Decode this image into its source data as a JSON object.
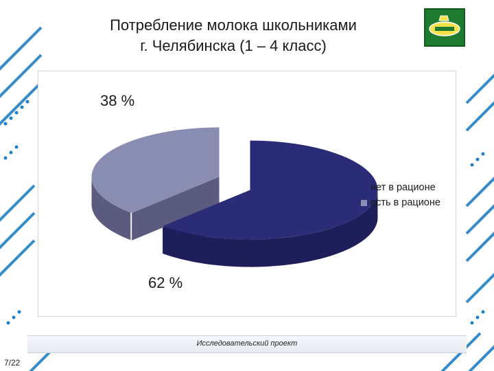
{
  "slide": {
    "title_line1": "Потребление молока школьниками",
    "title_line2": "г. Челябинска  (1 – 4 класс)",
    "footer": "Исследовательский проект",
    "page": "7/22",
    "logo_icon": "milk-company-logo-icon"
  },
  "colors": {
    "series_none": "#2b2c78",
    "series_none_side": "#1d1e5a",
    "series_has": "#8a8db2",
    "series_has_side": "#5a5b7e",
    "accent": "#1f80c4"
  },
  "chart_data": {
    "type": "pie",
    "title": "",
    "categories": [
      "нет в рационе",
      "есть в рационе"
    ],
    "values": [
      62,
      38
    ],
    "data_labels": [
      "62 %",
      "38 %"
    ],
    "legend": {
      "position": "right",
      "entries": [
        "нет в рационе",
        "есть в рационе"
      ]
    },
    "style": "3d-exploded"
  }
}
